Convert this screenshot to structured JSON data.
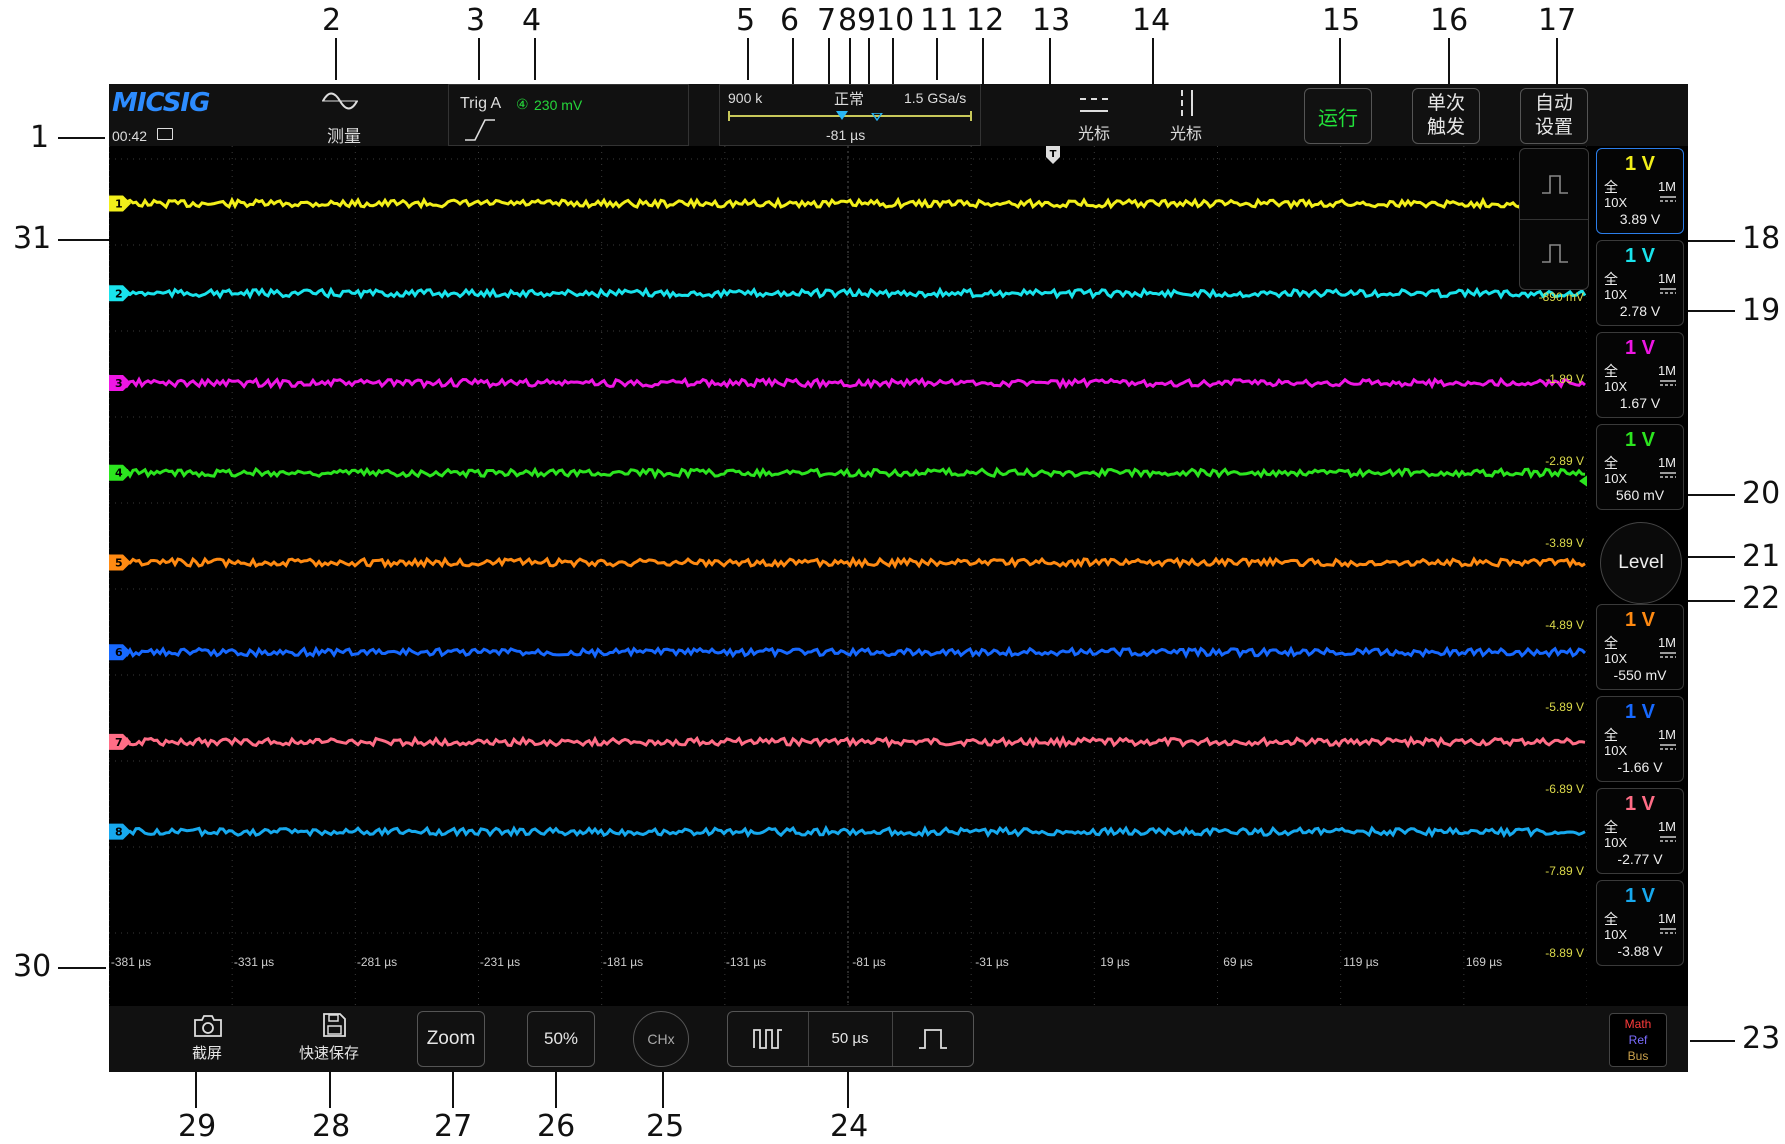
{
  "topbar": {
    "logo": "MICSIG",
    "clock": "00:42",
    "measure_label": "测量",
    "trigger_name": "Trig A",
    "trigger_source": "④",
    "trigger_level": "230 mV",
    "memory_depth": "900 k",
    "trigger_mode": "正常",
    "sample_rate": "1.5 GSa/s",
    "time_offset": "-81 µs",
    "cursor_h_label": "光标",
    "cursor_v_label": "光标",
    "run_label": "运行",
    "single_label_1": "单次",
    "single_label_2": "触发",
    "auto_label_1": "自动",
    "auto_label_2": "设置"
  },
  "channels": [
    {
      "num": "1",
      "scale": "1 V",
      "coupling_full": "全",
      "impedance": "1M",
      "probe": "10X",
      "offset": "3.89 V",
      "color": "#f2ef1a"
    },
    {
      "num": "2",
      "scale": "1 V",
      "coupling_full": "全",
      "impedance": "1M",
      "probe": "10X",
      "offset": "2.78 V",
      "color": "#19e3ec"
    },
    {
      "num": "3",
      "scale": "1 V",
      "coupling_full": "全",
      "impedance": "1M",
      "probe": "10X",
      "offset": "1.67 V",
      "color": "#ee16e4"
    },
    {
      "num": "4",
      "scale": "1 V",
      "coupling_full": "全",
      "impedance": "1M",
      "probe": "10X",
      "offset": "560 mV",
      "color": "#2ce51f"
    },
    {
      "num": "5",
      "scale": "1 V",
      "coupling_full": "全",
      "impedance": "1M",
      "probe": "10X",
      "offset": "-550 mV",
      "color": "#ff8a12"
    },
    {
      "num": "6",
      "scale": "1 V",
      "coupling_full": "全",
      "impedance": "1M",
      "probe": "10X",
      "offset": "-1.66 V",
      "color": "#1769ff"
    },
    {
      "num": "7",
      "scale": "1 V",
      "coupling_full": "全",
      "impedance": "1M",
      "probe": "10X",
      "offset": "-2.77 V",
      "color": "#ff6d86"
    },
    {
      "num": "8",
      "scale": "1 V",
      "coupling_full": "全",
      "impedance": "1M",
      "probe": "10X",
      "offset": "-3.88 V",
      "color": "#17a9ee"
    }
  ],
  "voltage_labels": [
    "-890 mV",
    "-1.89 V",
    "-2.89 V",
    "-3.89 V",
    "-4.89 V",
    "-5.89 V",
    "-6.89 V",
    "-7.89 V",
    "-8.89 V"
  ],
  "time_labels": [
    "-381 µs",
    "-331 µs",
    "-281 µs",
    "-231 µs",
    "-181 µs",
    "-131 µs",
    "-81 µs",
    "-31 µs",
    "19 µs",
    "69 µs",
    "119 µs",
    "169 µs"
  ],
  "level_label": "Level",
  "bottombar": {
    "screenshot_label": "截屏",
    "quicksave_label": "快速保存",
    "zoom_label": "Zoom",
    "fifty_label": "50%",
    "chx_label": "CHx",
    "timebase_label": "50 µs"
  },
  "mrb": {
    "math": "Math",
    "ref": "Ref",
    "bus": "Bus"
  },
  "callouts": [
    "1",
    "2",
    "3",
    "4",
    "5",
    "6",
    "7",
    "8",
    "9",
    "10",
    "11",
    "12",
    "13",
    "14",
    "15",
    "16",
    "17",
    "18",
    "19",
    "20",
    "21",
    "22",
    "23",
    "24",
    "25",
    "26",
    "27",
    "28",
    "29",
    "30",
    "31"
  ]
}
